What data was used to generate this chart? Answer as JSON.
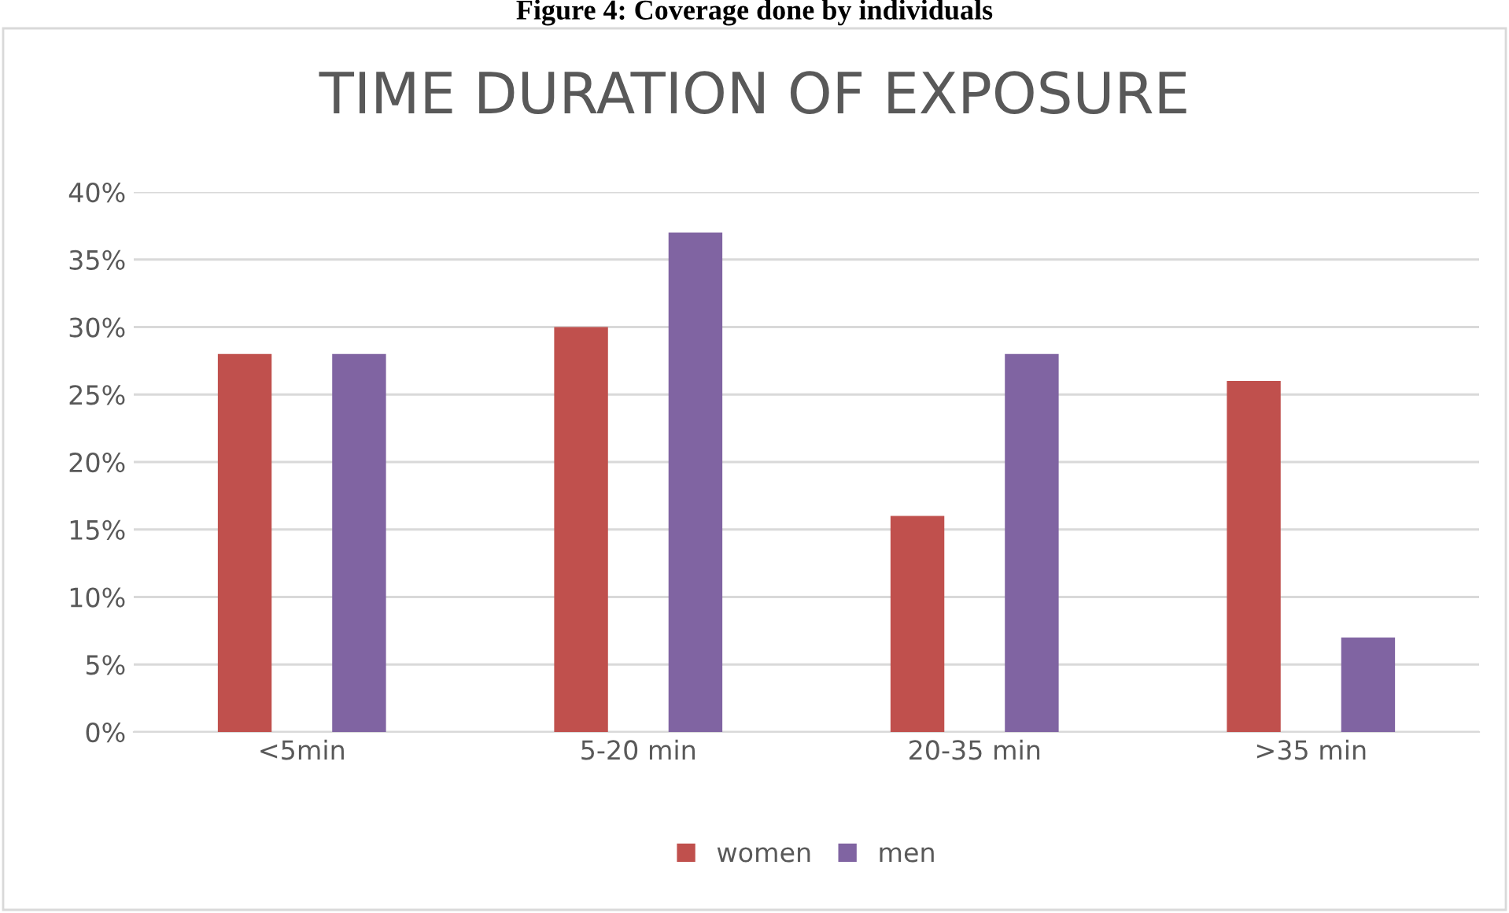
{
  "chart_data": {
    "type": "bar",
    "title": "TIME DURATION OF EXPOSURE",
    "annotations": [
      "Figure 4: Coverage done by individuals"
    ],
    "categories": [
      "<5min",
      "5-20 min",
      "20-35 min",
      ">35 min"
    ],
    "series": [
      {
        "name": "women",
        "color": "#c0504d",
        "values": [
          28,
          30,
          16,
          26
        ]
      },
      {
        "name": "men",
        "color": "#8064a2",
        "values": [
          28,
          37,
          28,
          7
        ]
      }
    ],
    "ylim": [
      0,
      40
    ],
    "yticks": [
      {
        "value": 0,
        "label": "0%"
      },
      {
        "value": 5,
        "label": "5%"
      },
      {
        "value": 10,
        "label": "10%"
      },
      {
        "value": 15,
        "label": "15%"
      },
      {
        "value": 20,
        "label": "20%"
      },
      {
        "value": 25,
        "label": "25%"
      },
      {
        "value": 30,
        "label": "30%"
      },
      {
        "value": 35,
        "label": "35%"
      },
      {
        "value": 40,
        "label": "40%"
      }
    ],
    "grid": "y",
    "legend": "bottom"
  }
}
